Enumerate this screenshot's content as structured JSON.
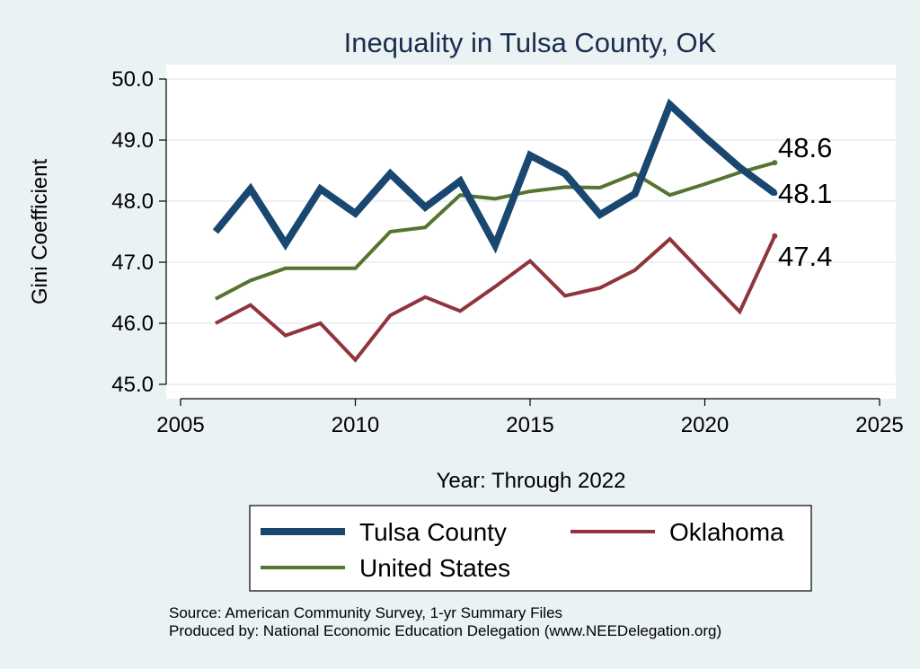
{
  "chart_data": {
    "type": "line",
    "title": "Inequality in Tulsa County, OK",
    "xlabel": "Year: Through 2022",
    "ylabel": "Gini Coefficient",
    "xlim": [
      2005,
      2025
    ],
    "ylim": [
      45.0,
      50.0
    ],
    "xticks": [
      "2005",
      "2010",
      "2015",
      "2020",
      "2025"
    ],
    "yticks": [
      "45.0",
      "46.0",
      "47.0",
      "48.0",
      "49.0",
      "50.0"
    ],
    "grid": true,
    "legend_position": "bottom",
    "series": [
      {
        "name": "Tulsa County",
        "color": "#1a476f",
        "x": [
          2006,
          2007,
          2008,
          2009,
          2010,
          2011,
          2012,
          2013,
          2014,
          2015,
          2016,
          2017,
          2018,
          2019,
          2020,
          2021,
          2022
        ],
        "y": [
          47.5,
          48.2,
          47.3,
          48.2,
          47.8,
          48.45,
          47.9,
          48.33,
          47.28,
          48.75,
          48.45,
          47.78,
          48.12,
          49.58,
          49.05,
          48.55,
          48.13
        ],
        "end_label": "48.1"
      },
      {
        "name": "Oklahoma",
        "color": "#90353b",
        "x": [
          2006,
          2007,
          2008,
          2009,
          2010,
          2011,
          2012,
          2013,
          2014,
          2015,
          2016,
          2017,
          2018,
          2019,
          2020,
          2021,
          2022
        ],
        "y": [
          46.0,
          46.3,
          45.8,
          46.0,
          45.4,
          46.13,
          46.43,
          46.2,
          46.6,
          47.02,
          46.45,
          46.58,
          46.87,
          47.38,
          46.78,
          46.19,
          47.43
        ],
        "end_label": "47.4"
      },
      {
        "name": "United States",
        "color": "#55752f",
        "x": [
          2006,
          2007,
          2008,
          2009,
          2010,
          2011,
          2012,
          2013,
          2014,
          2015,
          2016,
          2017,
          2018,
          2019,
          2020,
          2021,
          2022
        ],
        "y": [
          46.4,
          46.7,
          46.9,
          46.9,
          46.9,
          47.5,
          47.57,
          48.1,
          48.04,
          48.16,
          48.23,
          48.22,
          48.45,
          48.1,
          48.28,
          48.47,
          48.63
        ],
        "end_label": "48.6"
      }
    ],
    "notes": [
      "Source: American Community Survey, 1-yr Summary Files",
      "Produced by: National Economic Education Delegation (www.NEEDelegation.org)"
    ]
  }
}
